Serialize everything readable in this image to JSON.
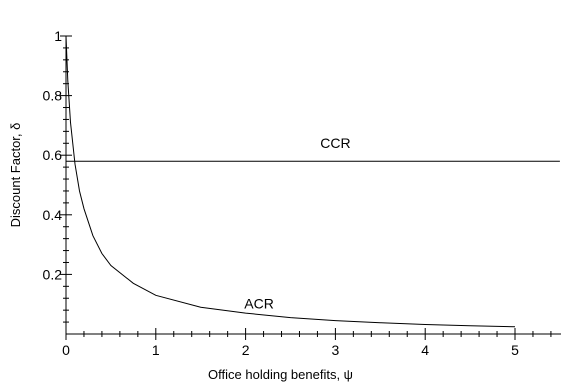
{
  "chart_data": {
    "type": "line",
    "title": "",
    "xlabel": "Office holding benefits, ψ",
    "ylabel": "Discount Factor, δ",
    "xlim": [
      0,
      5.5
    ],
    "ylim": [
      0,
      1
    ],
    "x_ticks": [
      {
        "value": 0,
        "label": "0"
      },
      {
        "value": 1,
        "label": "1"
      },
      {
        "value": 2,
        "label": "2"
      },
      {
        "value": 3,
        "label": "3"
      },
      {
        "value": 4,
        "label": "4"
      },
      {
        "value": 5,
        "label": "5"
      }
    ],
    "y_ticks": [
      {
        "value": 0.2,
        "label": "0.2"
      },
      {
        "value": 0.4,
        "label": "0.4"
      },
      {
        "value": 0.6,
        "label": "0.6"
      },
      {
        "value": 0.8,
        "label": "0.8"
      },
      {
        "value": 1.0,
        "label": "1"
      }
    ],
    "grid": false,
    "series": [
      {
        "name": "CCR",
        "label_at": {
          "x": 3.0,
          "y": 0.625
        },
        "x": [
          0,
          5.5
        ],
        "y": [
          0.58,
          0.58
        ]
      },
      {
        "name": "ACR",
        "label_at": {
          "x": 2.15,
          "y": 0.085
        },
        "x": [
          0.0,
          0.02,
          0.05,
          0.1,
          0.15,
          0.2,
          0.3,
          0.4,
          0.5,
          0.75,
          1.0,
          1.5,
          2.0,
          2.5,
          3.0,
          3.5,
          4.0,
          4.5,
          5.0
        ],
        "y": [
          1.0,
          0.85,
          0.71,
          0.57,
          0.48,
          0.42,
          0.33,
          0.27,
          0.23,
          0.17,
          0.13,
          0.09,
          0.07,
          0.055,
          0.045,
          0.038,
          0.032,
          0.028,
          0.024
        ]
      }
    ]
  }
}
